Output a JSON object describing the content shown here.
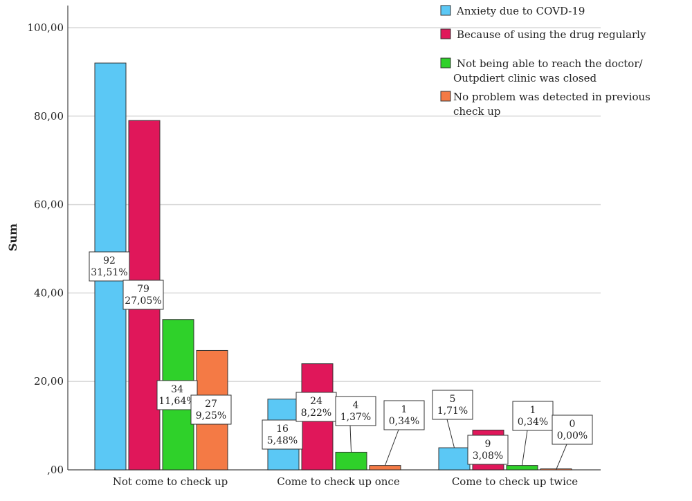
{
  "chart_data": {
    "type": "bar",
    "ylabel": "Sum",
    "ylim": [
      0,
      105
    ],
    "yticks": [
      ",00",
      "20,00",
      "40,00",
      "60,00",
      "80,00",
      "100,00"
    ],
    "categories": [
      "Not come to check up",
      "Come to check up once",
      "Come to check up twice"
    ],
    "series": [
      {
        "name": "Anxiety due to COVD-19",
        "color": "#5bc8f5",
        "values": [
          92,
          16,
          5
        ],
        "labels": [
          [
            "92",
            "31,51%"
          ],
          [
            "16",
            "5,48%"
          ],
          [
            "5",
            "1,71%"
          ]
        ]
      },
      {
        "name": "Because of using the drug regularly",
        "color": "#e0175a",
        "values": [
          79,
          24,
          9
        ],
        "labels": [
          [
            "79",
            "27,05%"
          ],
          [
            "24",
            "8,22%"
          ],
          [
            "9",
            "3,08%"
          ]
        ]
      },
      {
        "name": [
          "Not being able to reach the doctor/",
          "Outpdiert clinic was closed"
        ],
        "color": "#2fd12a",
        "values": [
          34,
          4,
          1
        ],
        "labels": [
          [
            "34",
            "11,64%"
          ],
          [
            "4",
            "1,37%"
          ],
          [
            "1",
            "0,34%"
          ]
        ]
      },
      {
        "name": [
          "No problem was detected in previous",
          "check up"
        ],
        "color": "#f47a45",
        "values": [
          27,
          1,
          0
        ],
        "labels": [
          [
            "27",
            "9,25%"
          ],
          [
            "1",
            "0,34%"
          ],
          [
            "0",
            "0,00%"
          ]
        ]
      }
    ],
    "grid": true,
    "legend_position": "top-right"
  }
}
